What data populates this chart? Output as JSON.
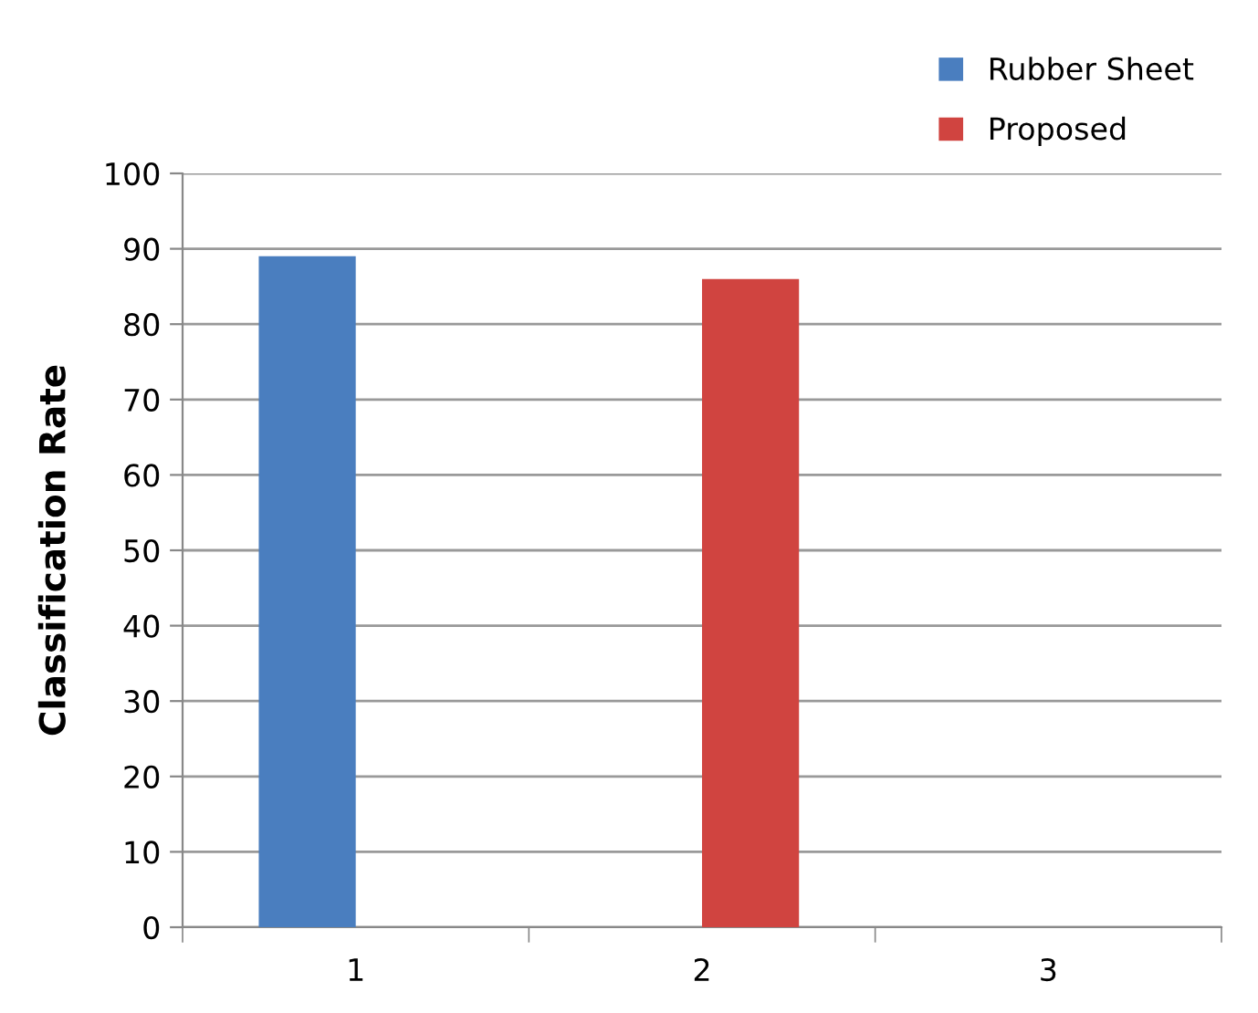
{
  "chart_data": {
    "type": "bar",
    "ylabel": "Classification Rate",
    "categories": [
      "1",
      "2",
      "3"
    ],
    "series": [
      {
        "name": "Rubber Sheet",
        "color": "#4a7ebf",
        "values": [
          89,
          null,
          null
        ]
      },
      {
        "name": "Proposed",
        "color": "#d04440",
        "values": [
          null,
          86,
          null
        ]
      }
    ],
    "ylim": [
      0,
      100
    ],
    "yticks": [
      0,
      10,
      20,
      30,
      40,
      50,
      60,
      70,
      80,
      90,
      100
    ],
    "grid": "y",
    "legend": "top right"
  }
}
